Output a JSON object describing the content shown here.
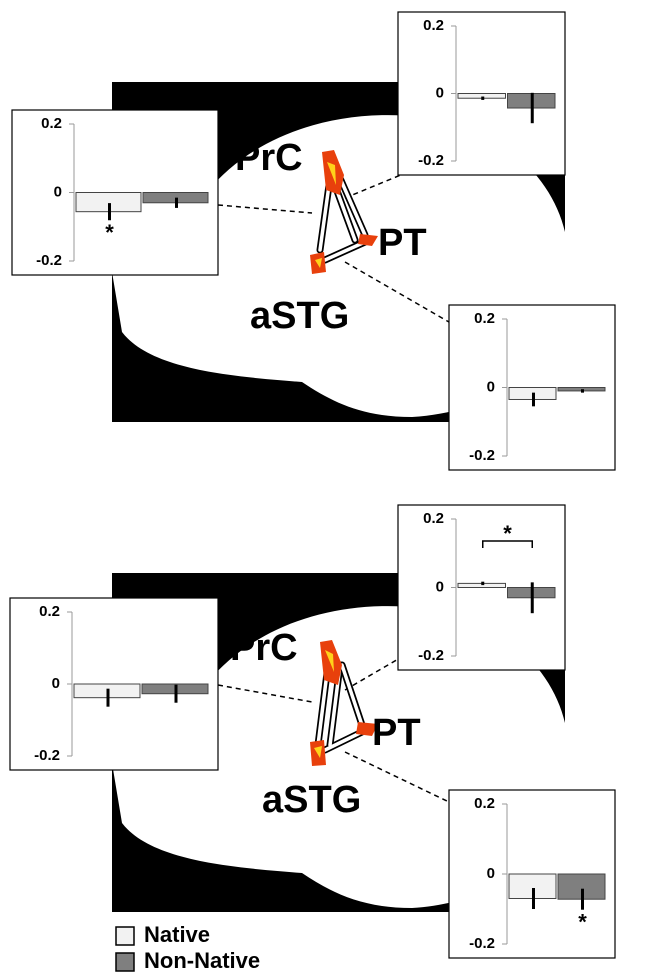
{
  "panels": [
    {
      "regions": [
        "PrC",
        "PT",
        "aSTG"
      ]
    },
    {
      "regions": [
        "PrC",
        "PT",
        "aSTG"
      ]
    }
  ],
  "legend": [
    {
      "name": "Native",
      "color": "#f2f2f2"
    },
    {
      "name": "Non-Native",
      "color": "#7f7f7f"
    }
  ],
  "chart_data": [
    {
      "type": "bar",
      "values": [
        -0.056,
        -0.03
      ],
      "errors": [
        0.025,
        0.015
      ],
      "ylim": [
        -0.2,
        0.2
      ],
      "yticks": [
        0.2,
        0,
        -0.2
      ],
      "annotations": [
        {
          "text": "*",
          "bar": 0
        }
      ]
    },
    {
      "type": "bar",
      "values": [
        -0.014,
        -0.043
      ],
      "errors": [
        0.005,
        0.045
      ],
      "ylim": [
        -0.2,
        0.2
      ],
      "yticks": [
        0.2,
        0,
        -0.2
      ]
    },
    {
      "type": "bar",
      "values": [
        -0.035,
        -0.01
      ],
      "errors": [
        0.02,
        0.005
      ],
      "ylim": [
        -0.2,
        0.2
      ],
      "yticks": [
        0.2,
        0,
        -0.2
      ]
    },
    {
      "type": "bar",
      "values": [
        -0.038,
        -0.027
      ],
      "errors": [
        0.025,
        0.025
      ],
      "ylim": [
        -0.2,
        0.2
      ],
      "yticks": [
        0.2,
        0,
        -0.2
      ]
    },
    {
      "type": "bar",
      "values": [
        0.012,
        -0.03
      ],
      "errors": [
        0.005,
        0.045
      ],
      "ylim": [
        -0.2,
        0.2
      ],
      "yticks": [
        0.2,
        0,
        -0.2
      ],
      "annotations": [
        {
          "text": "*",
          "bars": [
            0,
            1
          ]
        }
      ]
    },
    {
      "type": "bar",
      "values": [
        -0.07,
        -0.072
      ],
      "errors": [
        0.03,
        0.03
      ],
      "ylim": [
        -0.2,
        0.2
      ],
      "yticks": [
        0.2,
        0,
        -0.2
      ],
      "annotations": [
        {
          "text": "*",
          "bar": 1
        }
      ]
    }
  ]
}
